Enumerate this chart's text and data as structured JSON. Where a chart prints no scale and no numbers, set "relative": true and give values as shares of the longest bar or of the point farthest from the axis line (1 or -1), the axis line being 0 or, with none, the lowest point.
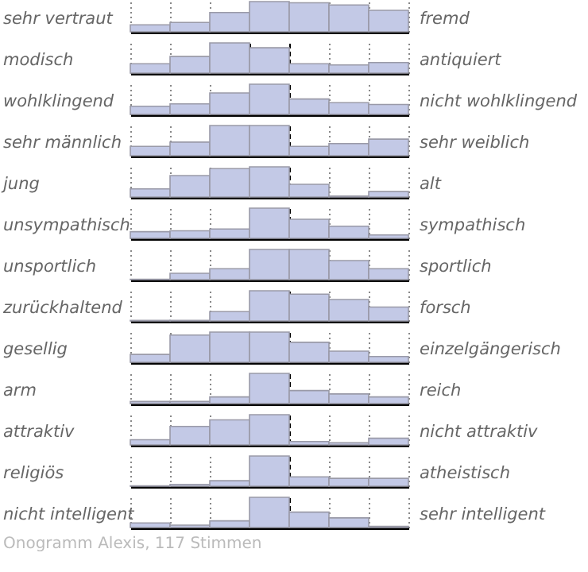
{
  "chart_data": [
    {
      "type": "bar",
      "relative": true,
      "categories": [
        null,
        null,
        null,
        null,
        null,
        null,
        null
      ],
      "values": [
        0.23,
        0.31,
        0.64,
        1,
        0.96,
        0.89,
        0.71
      ],
      "color": "#c3c9e6",
      "grid": "x",
      "annotations": [
        "sehr vertraut",
        "fremd"
      ]
    },
    {
      "type": "bar",
      "relative": true,
      "categories": [
        null,
        null,
        null,
        null,
        null,
        null,
        null
      ],
      "values": [
        0.31,
        0.55,
        1,
        0.84,
        0.31,
        0.27,
        0.35
      ],
      "color": "#c3c9e6",
      "grid": "x",
      "annotations": [
        "modisch",
        "antiquiert"
      ]
    },
    {
      "type": "bar",
      "relative": true,
      "categories": [
        null,
        null,
        null,
        null,
        null,
        null,
        null
      ],
      "values": [
        0.27,
        0.35,
        0.71,
        1,
        0.51,
        0.39,
        0.33
      ],
      "color": "#c3c9e6",
      "grid": "x",
      "annotations": [
        "wohlklingend",
        "nicht wohlklingend"
      ]
    },
    {
      "type": "bar",
      "relative": true,
      "categories": [
        null,
        null,
        null,
        null,
        null,
        null,
        null
      ],
      "values": [
        0.31,
        0.45,
        1,
        1,
        0.31,
        0.4,
        0.55
      ],
      "color": "#c3c9e6",
      "grid": "x",
      "annotations": [
        "sehr männlich",
        "sehr weiblich"
      ]
    },
    {
      "type": "bar",
      "relative": true,
      "categories": [
        null,
        null,
        null,
        null,
        null,
        null,
        null
      ],
      "values": [
        0.27,
        0.71,
        0.94,
        1,
        0.42,
        0.03,
        0.18
      ],
      "color": "#c3c9e6",
      "grid": "x",
      "annotations": [
        "jung",
        "alt"
      ]
    },
    {
      "type": "bar",
      "relative": true,
      "categories": [
        null,
        null,
        null,
        null,
        null,
        null,
        null
      ],
      "values": [
        0.22,
        0.25,
        0.31,
        1,
        0.63,
        0.4,
        0.11
      ],
      "color": "#c3c9e6",
      "grid": "x",
      "annotations": [
        "unsympathisch",
        "sympathisch"
      ]
    },
    {
      "type": "bar",
      "relative": true,
      "categories": [
        null,
        null,
        null,
        null,
        null,
        null,
        null
      ],
      "values": [
        0.01,
        0.21,
        0.36,
        1,
        1,
        0.63,
        0.36
      ],
      "color": "#c3c9e6",
      "grid": "x",
      "annotations": [
        "unsportlich",
        "sportlich"
      ]
    },
    {
      "type": "bar",
      "relative": true,
      "categories": [
        null,
        null,
        null,
        null,
        null,
        null,
        null
      ],
      "values": [
        0.02,
        0.02,
        0.31,
        1,
        0.89,
        0.71,
        0.46
      ],
      "color": "#c3c9e6",
      "grid": "x",
      "annotations": [
        "zurückhaltend",
        "forsch"
      ]
    },
    {
      "type": "bar",
      "relative": true,
      "categories": [
        null,
        null,
        null,
        null,
        null,
        null,
        null
      ],
      "values": [
        0.26,
        0.9,
        1,
        1,
        0.66,
        0.37,
        0.19
      ],
      "color": "#c3c9e6",
      "grid": "x",
      "annotations": [
        "gesellig",
        "einzelgängerisch"
      ]
    },
    {
      "type": "bar",
      "relative": true,
      "categories": [
        null,
        null,
        null,
        null,
        null,
        null,
        null
      ],
      "values": [
        0.07,
        0.07,
        0.22,
        1,
        0.43,
        0.32,
        0.22
      ],
      "color": "#c3c9e6",
      "grid": "x",
      "annotations": [
        "arm",
        "reich"
      ]
    },
    {
      "type": "bar",
      "relative": true,
      "categories": [
        null,
        null,
        null,
        null,
        null,
        null,
        null
      ],
      "values": [
        0.17,
        0.61,
        0.83,
        1,
        0.11,
        0.07,
        0.22
      ],
      "color": "#c3c9e6",
      "grid": "x",
      "annotations": [
        "attraktiv",
        "nicht attraktiv"
      ]
    },
    {
      "type": "bar",
      "relative": true,
      "categories": [
        null,
        null,
        null,
        null,
        null,
        null,
        null
      ],
      "values": [
        0.01,
        0.06,
        0.18,
        1,
        0.31,
        0.26,
        0.26
      ],
      "color": "#c3c9e6",
      "grid": "x",
      "annotations": [
        "religiös",
        "atheistisch"
      ]
    },
    {
      "type": "bar",
      "relative": true,
      "categories": [
        null,
        null,
        null,
        null,
        null,
        null,
        null
      ],
      "values": [
        0.15,
        0.08,
        0.22,
        1,
        0.51,
        0.32,
        0.04
      ],
      "color": "#c3c9e6",
      "grid": "x",
      "annotations": [
        "nicht intelligent",
        "sehr intelligent",
        "Onogramm Alexis, 117 Stimmen"
      ]
    }
  ]
}
